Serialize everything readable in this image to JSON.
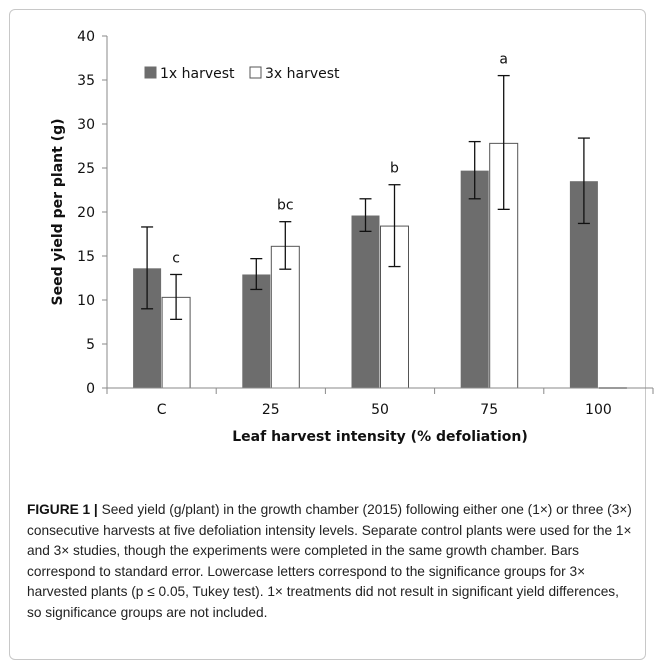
{
  "chart_data": {
    "type": "bar",
    "categories": [
      "C",
      "25",
      "50",
      "75",
      "100"
    ],
    "series": [
      {
        "name": "1x harvest",
        "color": "#6d6d6d",
        "values": [
          13.6,
          12.9,
          19.6,
          24.7,
          23.5
        ],
        "err_low": [
          9.0,
          11.2,
          17.8,
          21.5,
          18.7
        ],
        "err_high": [
          18.3,
          14.7,
          21.5,
          28.0,
          28.4
        ]
      },
      {
        "name": "3x harvest",
        "color": "#ffffff",
        "values": [
          10.3,
          16.1,
          18.4,
          27.8,
          0
        ],
        "err_low": [
          7.8,
          13.5,
          13.8,
          20.3,
          null
        ],
        "err_high": [
          12.9,
          18.9,
          23.1,
          35.5,
          null
        ]
      }
    ],
    "significance_labels": [
      "c",
      "bc",
      "b",
      "a",
      ""
    ],
    "ylim": [
      0,
      40
    ],
    "yticks": [
      0,
      5,
      10,
      15,
      20,
      25,
      30,
      35,
      40
    ],
    "xlabel": "Leaf harvest intensity (% defoliation)",
    "ylabel": "Seed yield per plant (g)",
    "legend_position": "top-left",
    "grid": false
  },
  "caption": {
    "lead": "FIGURE 1 |",
    "text": " Seed yield (g/plant) in the growth chamber (2015) following either one (1×) or three (3×) consecutive harvests at five defoliation intensity levels. Separate control plants were used for the 1× and 3× studies, though the experiments were completed in the same growth chamber. Bars correspond to standard error. Lowercase letters correspond to the significance groups for 3× harvested plants (p ≤ 0.05, Tukey test). 1× treatments did not result in significant yield differences, so significance groups are not included."
  }
}
